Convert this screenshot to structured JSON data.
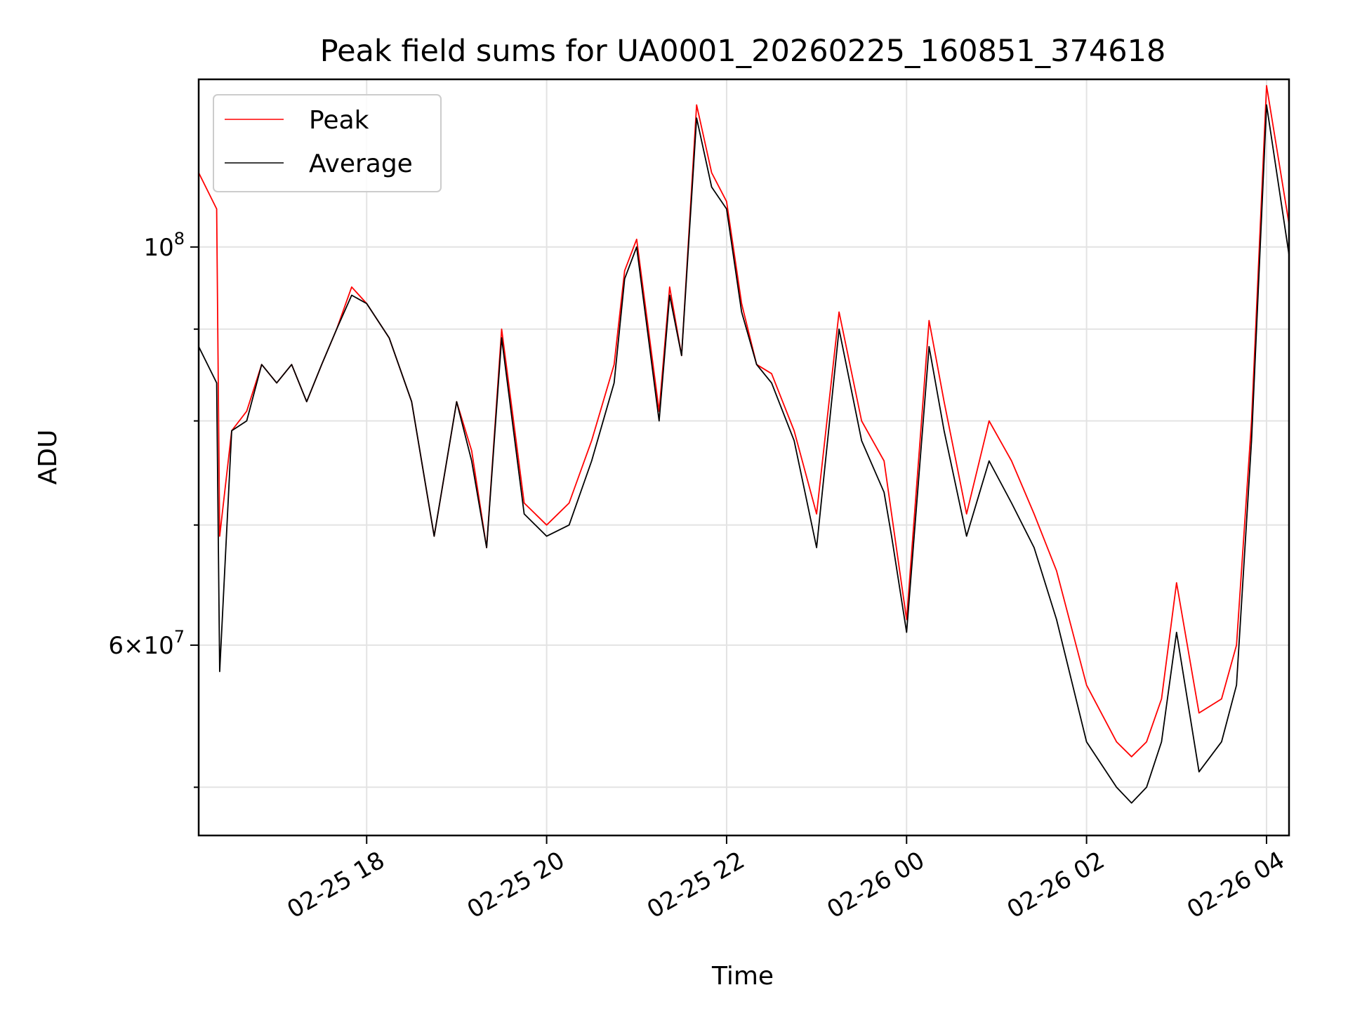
{
  "chart_data": {
    "type": "line",
    "title": "Peak field sums for UA0001_20260225_160851_374618",
    "xlabel": "Time",
    "ylabel": "ADU",
    "y_scale": "log",
    "ylim": [
      47000000,
      124000000
    ],
    "xlim": [
      "2026-02-25 16:08",
      "2026-02-26 04:15"
    ],
    "x_ticks": [
      {
        "at": "2026-02-25 18:00",
        "label": "02-25 18"
      },
      {
        "at": "2026-02-25 20:00",
        "label": "02-25 20"
      },
      {
        "at": "2026-02-25 22:00",
        "label": "02-25 22"
      },
      {
        "at": "2026-02-26 00:00",
        "label": "02-26 00"
      },
      {
        "at": "2026-02-26 02:00",
        "label": "02-26 02"
      },
      {
        "at": "2026-02-26 04:00",
        "label": "02-26 04"
      }
    ],
    "y_ticks": [
      {
        "value": 100000000,
        "base": "10",
        "exp": "8",
        "mantissa": ""
      },
      {
        "value": 60000000,
        "base": "10",
        "exp": "7",
        "mantissa": "6×"
      }
    ],
    "y_minor_ticks": [
      50000000,
      70000000,
      80000000,
      90000000
    ],
    "grid": true,
    "legend": "upper-left",
    "series": [
      {
        "name": "Peak",
        "color": "#ff0000",
        "x": [
          "2026-02-25 16:08",
          "2026-02-25 16:20",
          "2026-02-25 16:22",
          "2026-02-25 16:30",
          "2026-02-25 16:40",
          "2026-02-25 16:50",
          "2026-02-25 17:00",
          "2026-02-25 17:10",
          "2026-02-25 17:20",
          "2026-02-25 17:30",
          "2026-02-25 17:40",
          "2026-02-25 17:50",
          "2026-02-25 18:00",
          "2026-02-25 18:15",
          "2026-02-25 18:30",
          "2026-02-25 18:45",
          "2026-02-25 19:00",
          "2026-02-25 19:10",
          "2026-02-25 19:20",
          "2026-02-25 19:30",
          "2026-02-25 19:45",
          "2026-02-25 20:00",
          "2026-02-25 20:15",
          "2026-02-25 20:30",
          "2026-02-25 20:45",
          "2026-02-25 20:52",
          "2026-02-25 21:00",
          "2026-02-25 21:15",
          "2026-02-25 21:22",
          "2026-02-25 21:30",
          "2026-02-25 21:40",
          "2026-02-25 21:50",
          "2026-02-25 22:00",
          "2026-02-25 22:10",
          "2026-02-25 22:20",
          "2026-02-25 22:30",
          "2026-02-25 22:45",
          "2026-02-25 23:00",
          "2026-02-25 23:15",
          "2026-02-25 23:30",
          "2026-02-25 23:45",
          "2026-02-25 23:50",
          "2026-02-26 00:00",
          "2026-02-26 00:15",
          "2026-02-26 00:25",
          "2026-02-26 00:40",
          "2026-02-26 00:55",
          "2026-02-26 01:10",
          "2026-02-26 01:25",
          "2026-02-26 01:40",
          "2026-02-26 02:00",
          "2026-02-26 02:20",
          "2026-02-26 02:30",
          "2026-02-26 02:40",
          "2026-02-26 02:50",
          "2026-02-26 03:00",
          "2026-02-26 03:15",
          "2026-02-26 03:30",
          "2026-02-26 03:40",
          "2026-02-26 03:50",
          "2026-02-26 04:00",
          "2026-02-26 04:15"
        ],
        "values": [
          110000000,
          105000000,
          69000000,
          79000000,
          81000000,
          86000000,
          84000000,
          86000000,
          82000000,
          86000000,
          90000000,
          95000000,
          93000000,
          89000000,
          82000000,
          69000000,
          82000000,
          77000000,
          68000000,
          90000000,
          72000000,
          70000000,
          72000000,
          78000000,
          86000000,
          97000000,
          101000000,
          81000000,
          95000000,
          87000000,
          120000000,
          110000000,
          106000000,
          93000000,
          86000000,
          85000000,
          79000000,
          71000000,
          92000000,
          80000000,
          76000000,
          71000000,
          62000000,
          91000000,
          82000000,
          71000000,
          80000000,
          76000000,
          71000000,
          66000000,
          57000000,
          53000000,
          52000000,
          53000000,
          56000000,
          65000000,
          55000000,
          56000000,
          60000000,
          80000000,
          123000000,
          103000000
        ]
      },
      {
        "name": "Average",
        "color": "#000000",
        "x": [
          "2026-02-25 16:08",
          "2026-02-25 16:20",
          "2026-02-25 16:22",
          "2026-02-25 16:30",
          "2026-02-25 16:40",
          "2026-02-25 16:50",
          "2026-02-25 17:00",
          "2026-02-25 17:10",
          "2026-02-25 17:20",
          "2026-02-25 17:30",
          "2026-02-25 17:40",
          "2026-02-25 17:50",
          "2026-02-25 18:00",
          "2026-02-25 18:15",
          "2026-02-25 18:30",
          "2026-02-25 18:45",
          "2026-02-25 19:00",
          "2026-02-25 19:10",
          "2026-02-25 19:20",
          "2026-02-25 19:30",
          "2026-02-25 19:45",
          "2026-02-25 20:00",
          "2026-02-25 20:15",
          "2026-02-25 20:30",
          "2026-02-25 20:45",
          "2026-02-25 20:52",
          "2026-02-25 21:00",
          "2026-02-25 21:15",
          "2026-02-25 21:22",
          "2026-02-25 21:30",
          "2026-02-25 21:40",
          "2026-02-25 21:50",
          "2026-02-25 22:00",
          "2026-02-25 22:10",
          "2026-02-25 22:20",
          "2026-02-25 22:30",
          "2026-02-25 22:45",
          "2026-02-25 23:00",
          "2026-02-25 23:15",
          "2026-02-25 23:30",
          "2026-02-25 23:45",
          "2026-02-25 23:50",
          "2026-02-26 00:00",
          "2026-02-26 00:15",
          "2026-02-26 00:25",
          "2026-02-26 00:40",
          "2026-02-26 00:55",
          "2026-02-26 01:10",
          "2026-02-26 01:25",
          "2026-02-26 01:40",
          "2026-02-26 02:00",
          "2026-02-26 02:20",
          "2026-02-26 02:30",
          "2026-02-26 02:40",
          "2026-02-26 02:50",
          "2026-02-26 03:00",
          "2026-02-26 03:15",
          "2026-02-26 03:30",
          "2026-02-26 03:40",
          "2026-02-26 03:50",
          "2026-02-26 04:00",
          "2026-02-26 04:15"
        ],
        "values": [
          88000000,
          84000000,
          58000000,
          79000000,
          80000000,
          86000000,
          84000000,
          86000000,
          82000000,
          86000000,
          90000000,
          94000000,
          93000000,
          89000000,
          82000000,
          69000000,
          82000000,
          76000000,
          68000000,
          89000000,
          71000000,
          69000000,
          70000000,
          76000000,
          84000000,
          96000000,
          100000000,
          80000000,
          94000000,
          87000000,
          118000000,
          108000000,
          105000000,
          92000000,
          86000000,
          84000000,
          78000000,
          68000000,
          90000000,
          78000000,
          73000000,
          69000000,
          61000000,
          88000000,
          79000000,
          69000000,
          76000000,
          72000000,
          68000000,
          62000000,
          53000000,
          50000000,
          49000000,
          50000000,
          53000000,
          61000000,
          51000000,
          53000000,
          57000000,
          78000000,
          120000000,
          99000000
        ]
      }
    ]
  }
}
